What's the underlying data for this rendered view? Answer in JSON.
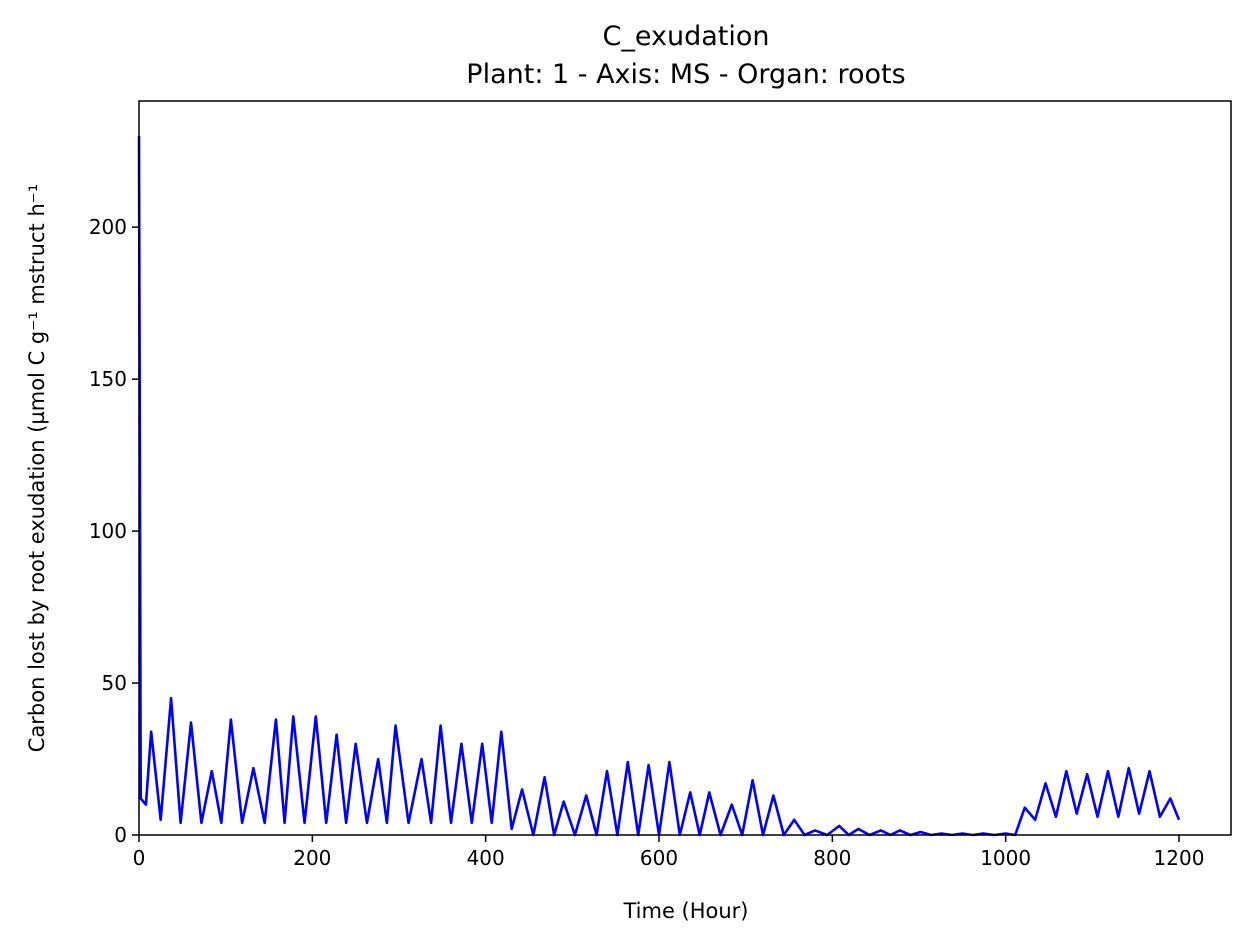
{
  "chart_data": {
    "type": "line",
    "title": "C_exudation",
    "subtitle": "Plant: 1 - Axis: MS - Organ: roots",
    "x_label": "Time (Hour)",
    "y_label": "Carbon lost by root exudation (µmol C g⁻¹ mstruct h⁻¹",
    "xlim": [
      0,
      1260
    ],
    "ylim": [
      0,
      241.5
    ],
    "xticks": [
      0,
      200,
      400,
      600,
      800,
      1000,
      1200
    ],
    "yticks": [
      0,
      50,
      100,
      150,
      200
    ],
    "grid": false,
    "x": [
      0,
      2,
      8,
      14,
      25,
      37,
      48,
      60,
      72,
      84,
      95,
      106,
      119,
      132,
      145,
      158,
      168,
      178,
      191,
      204,
      216,
      228,
      239,
      250,
      263,
      276,
      286,
      296,
      311,
      326,
      337,
      348,
      360,
      372,
      384,
      396,
      407,
      418,
      430,
      442,
      455,
      468,
      479,
      490,
      503,
      516,
      528,
      540,
      552,
      564,
      576,
      588,
      600,
      612,
      624,
      636,
      647,
      658,
      671,
      684,
      696,
      708,
      720,
      732,
      744,
      756,
      768,
      780,
      794,
      808,
      819,
      830,
      843,
      856,
      867,
      878,
      890,
      902,
      914,
      926,
      938,
      950,
      962,
      974,
      987,
      1000,
      1011,
      1022,
      1034,
      1046,
      1058,
      1070,
      1082,
      1094,
      1106,
      1118,
      1130,
      1142,
      1154,
      1166,
      1178,
      1190,
      1200
    ],
    "series": [
      {
        "name": "C_exudation",
        "color": "#0000ff",
        "values": [
          230,
          12,
          10,
          34,
          5,
          45,
          4,
          37,
          4,
          21,
          4,
          38,
          4,
          22,
          4,
          38,
          4,
          39,
          4,
          39,
          4,
          33,
          4,
          30,
          4,
          25,
          4,
          36,
          4,
          25,
          4,
          36,
          4,
          30,
          4,
          30,
          4,
          34,
          2,
          15,
          0,
          19,
          0,
          11,
          0,
          13,
          0,
          21,
          0,
          24,
          0,
          23,
          0,
          24,
          0,
          14,
          0,
          14,
          0,
          10,
          0,
          18,
          0,
          13,
          0,
          5,
          0,
          1.5,
          0,
          3,
          0,
          2,
          0,
          1.5,
          0,
          1.5,
          0,
          1,
          0,
          0.5,
          0,
          0.5,
          0,
          0.5,
          0,
          0.5,
          0,
          9,
          5,
          17,
          6,
          21,
          7,
          20,
          6,
          21,
          6,
          22,
          7,
          21,
          6,
          12,
          5
        ]
      }
    ]
  }
}
